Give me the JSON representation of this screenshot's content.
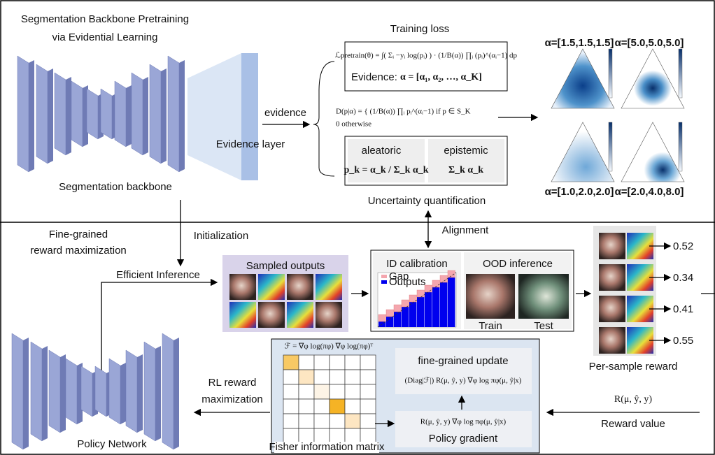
{
  "top": {
    "title_lines": [
      "Segmentation Backbone Pretraining",
      "via Evidential Learning"
    ],
    "backbone_label": "Segmentation backbone",
    "evidence_layer_label": "Evidence layer",
    "evidence_arrow_label": "evidence",
    "training_loss": {
      "title": "Training loss",
      "formula": "ℒpretrain(θ) = ∫( Σᵢ −yᵢ log(pᵢ) ) · (1/B(α)) ∏ᵢ (pᵢ)^(αᵢ−1) dp",
      "evidence_label": "Evidence:",
      "evidence_formula": "α = [α₁, α₂, …, α_K]"
    },
    "dirichlet_formula_lines": [
      "D(p|α) = { (1/B(α)) ∏ᵢ pᵢ^(αᵢ−1)   if p ∈ S_K",
      "             0                                  otherwise"
    ],
    "uncertainty": {
      "aleatoric": "aleatoric",
      "aleatoric_formula": "p_k = α_k / Σ_k α_k",
      "epistemic": "epistemic",
      "epistemic_formula": "Σ_k α_k",
      "title": "Uncertainty quantification"
    },
    "dirichlet_plots": [
      "α=[1.5,1.5,1.5]",
      "α=[5.0,5.0,5.0]",
      "α=[1.0,2.0,2.0]",
      "α=[2.0,4.0,8.0]"
    ]
  },
  "bottom": {
    "title_lines": [
      "Fine-grained",
      "reward maximization"
    ],
    "initialization": "Initialization",
    "alignment": "Alignment",
    "efficient_inference": "Efficient Inference",
    "sampled_outputs": "Sampled outputs",
    "id_calibration": "ID calibration",
    "calibration_legend": [
      "Gap",
      "Outputs"
    ],
    "ood_inference": "OOD inference",
    "train": "Train",
    "test": "Test",
    "rewards": [
      "0.52",
      "0.34",
      "0.41",
      "0.55"
    ],
    "per_sample_reward": "Per-sample  reward",
    "policy_network": "Policy Network",
    "rl_lines": [
      "RL reward",
      "maximization"
    ],
    "fisher_formula": "ℱ = ∇φ log(πφ) ∇φ log(πφ)ᵀ",
    "fisher_label": "Fisher information matrix",
    "update_title": "fine-grained update",
    "update_formula": "(Diag|ℱ|) R(μ, ŷ, y) ∇φ log πφ(μ, ŷ|x)",
    "gradient_formula": "R(μ, ŷ, y) ∇φ log πφ(μ, ŷ|x)",
    "gradient_title": "Policy gradient",
    "reward_formula": "R(μ, ŷ, y)",
    "reward_value": "Reward value"
  }
}
